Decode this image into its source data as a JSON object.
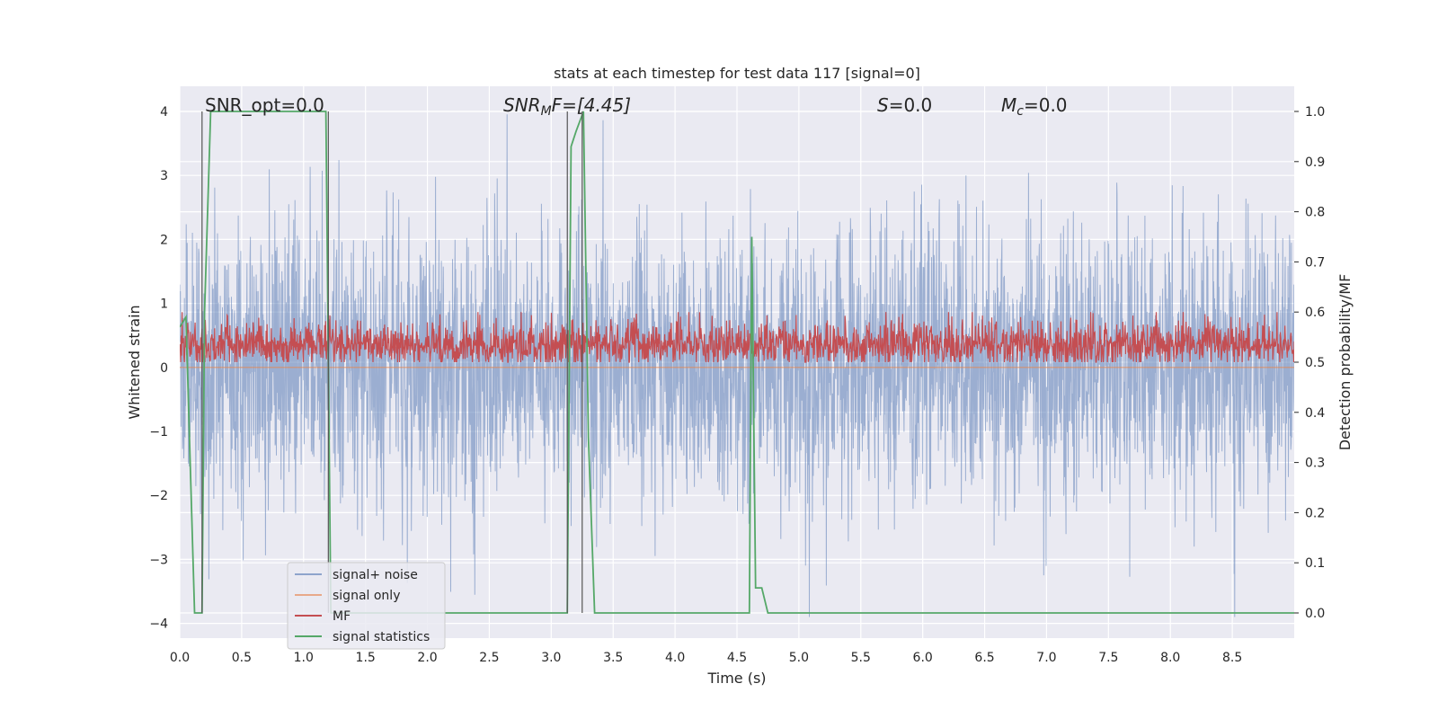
{
  "chart_data": {
    "type": "line",
    "title": "stats at each timestep for test data 117 [signal=0]",
    "xlabel": "Time (s)",
    "ylabel_left": "Whitened strain",
    "ylabel_right": "Detection probability/MF",
    "xlim": [
      0.0,
      9.0
    ],
    "ylim_left": [
      -4.2,
      4.4
    ],
    "ylim_right": [
      -0.05,
      1.04
    ],
    "x_ticks": [
      "0.0",
      "0.5",
      "1.0",
      "1.5",
      "2.0",
      "2.5",
      "3.0",
      "3.5",
      "4.0",
      "4.5",
      "5.0",
      "5.5",
      "6.0",
      "6.5",
      "7.0",
      "7.5",
      "8.0",
      "8.5"
    ],
    "y_left_ticks": [
      "4",
      "3",
      "2",
      "1",
      "0",
      "−1",
      "−2",
      "−3",
      "−4"
    ],
    "y_right_ticks": [
      "1.0",
      "0.9",
      "0.8",
      "0.7",
      "0.6",
      "0.5",
      "0.4",
      "0.3",
      "0.2",
      "0.1",
      "0.0"
    ],
    "grid": true,
    "legend_placement": "lower-left",
    "annotations": {
      "snr_opt": "SNR_opt=0.0",
      "snr_mf_sym": "SNR",
      "snr_mf_sub": "M",
      "snr_mf_rest": "F=[4.45]",
      "s_sym": "S",
      "s_rest": "=0.0",
      "mc_sym": "M",
      "mc_sub": "c",
      "mc_rest": "=0.0"
    },
    "vertical_markers_s": [
      0.18,
      3.13,
      3.25,
      1.2
    ],
    "series": [
      {
        "name": "signal+ noise",
        "color": "#4c72b0",
        "axis": "left",
        "sampling": "pseudo-random white noise, 0–9 s",
        "amplitude_envelope": [
          -3.9,
          4.0
        ]
      },
      {
        "name": "signal only",
        "color": "#dd8452",
        "axis": "left",
        "values_note": "zero signal"
      },
      {
        "name": "MF",
        "color": "#c44e52",
        "axis": "right",
        "level_range": [
          0.5,
          0.6
        ]
      },
      {
        "name": "signal statistics",
        "color": "#55a868",
        "axis": "right",
        "x": [
          0.0,
          0.05,
          0.12,
          0.15,
          0.18,
          0.2,
          0.25,
          0.28,
          1.15,
          1.18,
          1.22,
          1.3,
          3.1,
          3.13,
          3.16,
          3.2,
          3.26,
          3.3,
          3.35,
          4.55,
          4.6,
          4.62,
          4.65,
          4.7,
          4.75,
          9.0
        ],
        "y": [
          0.57,
          0.59,
          0.0,
          0.0,
          0.0,
          0.6,
          1.0,
          1.0,
          1.0,
          1.0,
          0.0,
          0.0,
          0.0,
          0.0,
          0.93,
          0.96,
          1.0,
          0.35,
          0.0,
          0.0,
          0.0,
          0.75,
          0.05,
          0.05,
          0.0,
          0.0
        ]
      }
    ]
  }
}
